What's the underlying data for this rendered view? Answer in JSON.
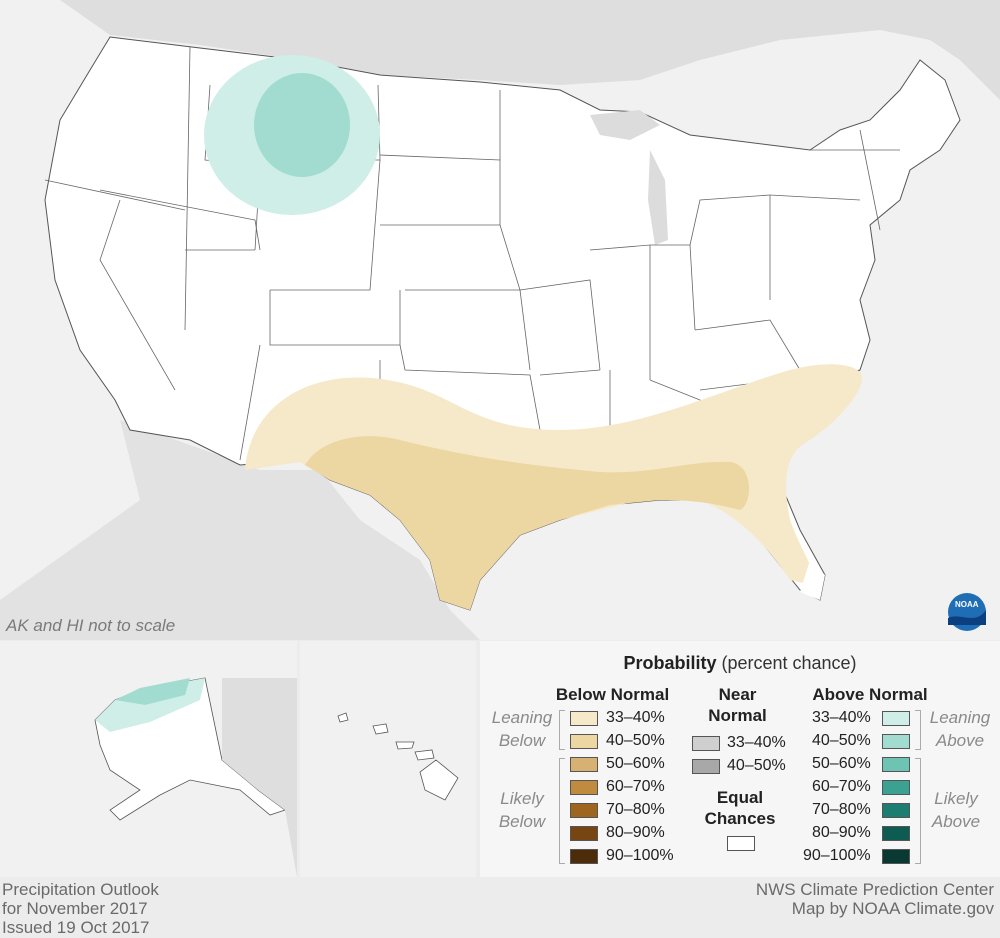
{
  "map_note": "AK and HI not to scale",
  "footer_left": [
    "Precipitation Outlook",
    "for November 2017",
    "Issued 19 Oct 2017"
  ],
  "footer_right": [
    "NWS Climate Prediction Center",
    "Map by NOAA Climate.gov"
  ],
  "logo_text": "NOAA",
  "legend": {
    "title_bold": "Probability",
    "title_rest": " (percent chance)",
    "below": {
      "heading": "Below Normal",
      "group_leaning": [
        "Leaning",
        "Below"
      ],
      "group_likely": [
        "Likely",
        "Below"
      ],
      "rows": [
        {
          "label": "33–40%",
          "color": "#f6e9c9"
        },
        {
          "label": "40–50%",
          "color": "#ecd6a2"
        },
        {
          "label": "50–60%",
          "color": "#d7b173"
        },
        {
          "label": "60–70%",
          "color": "#c08a3f"
        },
        {
          "label": "70–80%",
          "color": "#9e6520"
        },
        {
          "label": "80–90%",
          "color": "#774512"
        },
        {
          "label": "90–100%",
          "color": "#4d2c0a"
        }
      ]
    },
    "near": {
      "heading": [
        "Near",
        "Normal"
      ],
      "rows": [
        {
          "label": "33–40%",
          "color": "#cfcfcf"
        },
        {
          "label": "40–50%",
          "color": "#a8a8a8"
        }
      ]
    },
    "equal": {
      "heading": [
        "Equal",
        "Chances"
      ],
      "color": "#ffffff"
    },
    "above": {
      "heading": "Above Normal",
      "group_leaning": [
        "Leaning",
        "Above"
      ],
      "group_likely": [
        "Likely",
        "Above"
      ],
      "rows": [
        {
          "label": "33–40%",
          "color": "#cfeee8"
        },
        {
          "label": "40–50%",
          "color": "#a2dcd1"
        },
        {
          "label": "50–60%",
          "color": "#6ec4b3"
        },
        {
          "label": "60–70%",
          "color": "#3aa193"
        },
        {
          "label": "70–80%",
          "color": "#1d7d70"
        },
        {
          "label": "80–90%",
          "color": "#0e5b51"
        },
        {
          "label": "90–100%",
          "color": "#083a33"
        }
      ]
    }
  }
}
